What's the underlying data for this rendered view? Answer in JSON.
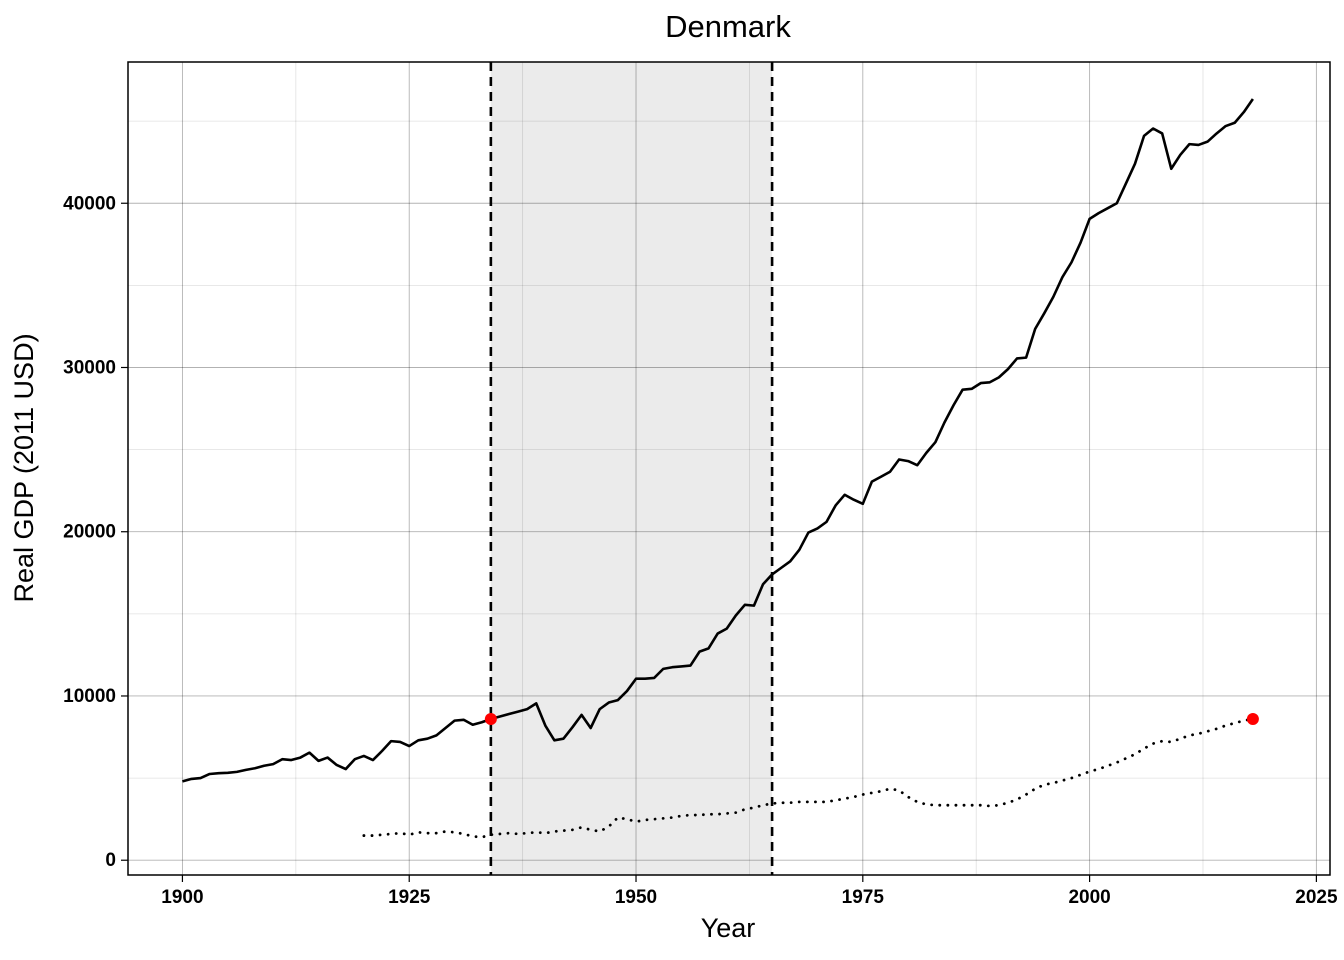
{
  "chart_data": {
    "type": "line",
    "title": "Denmark",
    "x_label": "Year",
    "y_label": "Real GDP (2011 USD)",
    "x": [
      1900,
      1901,
      1902,
      1903,
      1904,
      1905,
      1906,
      1907,
      1908,
      1909,
      1910,
      1911,
      1912,
      1913,
      1914,
      1915,
      1916,
      1917,
      1918,
      1919,
      1920,
      1921,
      1922,
      1923,
      1924,
      1925,
      1926,
      1927,
      1928,
      1929,
      1930,
      1931,
      1932,
      1933,
      1934,
      1935,
      1936,
      1937,
      1938,
      1939,
      1940,
      1941,
      1942,
      1943,
      1944,
      1945,
      1946,
      1947,
      1948,
      1949,
      1950,
      1951,
      1952,
      1953,
      1954,
      1955,
      1956,
      1957,
      1958,
      1959,
      1960,
      1961,
      1962,
      1963,
      1964,
      1965,
      1966,
      1967,
      1968,
      1969,
      1970,
      1971,
      1972,
      1973,
      1974,
      1975,
      1976,
      1977,
      1978,
      1979,
      1980,
      1981,
      1982,
      1983,
      1984,
      1985,
      1986,
      1987,
      1988,
      1989,
      1990,
      1991,
      1992,
      1993,
      1994,
      1995,
      1996,
      1997,
      1998,
      1999,
      2000,
      2001,
      2002,
      2003,
      2004,
      2005,
      2006,
      2007,
      2008,
      2009,
      2010,
      2011,
      2012,
      2013,
      2014,
      2015,
      2016,
      2017,
      2018
    ],
    "series": [
      {
        "color": "#000000",
        "style": "solid",
        "values": [
          4800,
          4950,
          5000,
          5250,
          5300,
          5320,
          5380,
          5500,
          5600,
          5750,
          5850,
          6150,
          6100,
          6250,
          6550,
          6050,
          6250,
          5800,
          5550,
          6150,
          6350,
          6100,
          6650,
          7250,
          7200,
          6950,
          7300,
          7400,
          7600,
          8050,
          8500,
          8550,
          8250,
          8400,
          8600,
          8750,
          8900,
          9050,
          9200,
          9550,
          8200,
          7300,
          7400,
          8100,
          8850,
          8050,
          9200,
          9600,
          9750,
          10300,
          11050,
          11050,
          11100,
          11650,
          11750,
          11800,
          11850,
          12700,
          12900,
          13800,
          14100,
          14900,
          15550,
          15500,
          16800,
          17400,
          17800,
          18200,
          18900,
          19950,
          20200,
          20600,
          21600,
          22250,
          21950,
          21700,
          23050,
          23350,
          23650,
          24400,
          24300,
          24050,
          24800,
          25450,
          26650,
          27700,
          28650,
          28700,
          29050,
          29100,
          29400,
          29900,
          30550,
          30600,
          32350,
          33300,
          34300,
          35500,
          36400,
          37600,
          39050,
          39400,
          39700,
          40000,
          41200,
          42400,
          44100,
          44550,
          44250,
          42100,
          42950,
          43600,
          43550,
          43750,
          44250,
          44700,
          44900,
          45550,
          46350
        ]
      },
      {
        "color": "#000000",
        "style": "dotted",
        "values": [
          null,
          null,
          null,
          null,
          null,
          null,
          null,
          null,
          null,
          null,
          null,
          null,
          null,
          null,
          null,
          null,
          null,
          null,
          null,
          null,
          1500,
          1500,
          1550,
          1600,
          1650,
          1550,
          1700,
          1650,
          1650,
          1750,
          1700,
          1600,
          1450,
          1400,
          1550,
          1600,
          1650,
          1600,
          1650,
          1700,
          1650,
          1750,
          1800,
          1850,
          2000,
          1850,
          1750,
          2050,
          2600,
          2500,
          2350,
          2450,
          2500,
          2550,
          2600,
          2700,
          2750,
          2750,
          2800,
          2800,
          2850,
          2900,
          3100,
          3200,
          3350,
          3450,
          3500,
          3500,
          3550,
          3550,
          3550,
          3550,
          3650,
          3750,
          3850,
          4000,
          4100,
          4200,
          4350,
          4250,
          3850,
          3550,
          3400,
          3350,
          3350,
          3350,
          3350,
          3350,
          3350,
          3300,
          3350,
          3500,
          3700,
          4000,
          4350,
          4600,
          4700,
          4850,
          5000,
          5200,
          5400,
          5550,
          5750,
          5950,
          6200,
          6450,
          6800,
          7100,
          7250,
          7200,
          7400,
          7600,
          7700,
          7850,
          8000,
          8200,
          8350,
          8500,
          8600
        ]
      }
    ],
    "points": {
      "x": [
        1934,
        2018
      ],
      "values": [
        8600,
        8600
      ],
      "color": "#ff0000"
    },
    "shaded_x": [
      1934,
      1965
    ],
    "shade_color": "#ebebeb",
    "vlines": [
      1934,
      1965
    ],
    "xlim": [
      1894,
      2026.5
    ],
    "ylim": [
      -900,
      48600
    ],
    "xticks": [
      1900,
      1925,
      1950,
      1975,
      2000,
      2025
    ],
    "yticks": [
      0,
      10000,
      20000,
      30000,
      40000
    ],
    "x_minor_ticks": [
      1912.5,
      1937.5,
      1962.5,
      1987.5,
      2012.5
    ],
    "y_minor_ticks": [
      5000,
      15000,
      25000,
      35000,
      45000
    ],
    "grid": true
  }
}
